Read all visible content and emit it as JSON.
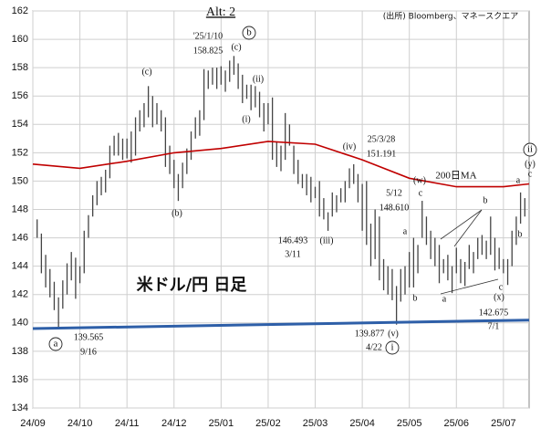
{
  "chart_data": {
    "type": "range-bar",
    "title": "Alt: 2",
    "source": "(出所) Bloomberg、マネースクエア",
    "watermark": "米ドル/円 日足",
    "color": "#444444",
    "grid": true,
    "xlim": [
      0,
      116
    ],
    "xticks": [
      {
        "value": 0,
        "label": "24/09"
      },
      {
        "value": 11,
        "label": "24/10"
      },
      {
        "value": 22,
        "label": "24/11"
      },
      {
        "value": 33,
        "label": "24/12"
      },
      {
        "value": 44,
        "label": "25/01"
      },
      {
        "value": 55,
        "label": "25/02"
      },
      {
        "value": 66,
        "label": "25/03"
      },
      {
        "value": 77,
        "label": "25/04"
      },
      {
        "value": 88,
        "label": "25/05"
      },
      {
        "value": 99,
        "label": "25/06"
      },
      {
        "value": 110,
        "label": "25/07"
      }
    ],
    "ylim": [
      134,
      162
    ],
    "yticks": [
      134,
      136,
      138,
      140,
      142,
      144,
      146,
      148,
      150,
      152,
      154,
      156,
      158,
      160,
      162
    ],
    "x": [
      1,
      2,
      3,
      4,
      5,
      6,
      7,
      8,
      9,
      10,
      11,
      12,
      13,
      14,
      15,
      16,
      17,
      18,
      19,
      20,
      21,
      22,
      23,
      24,
      25,
      26,
      27,
      28,
      29,
      30,
      31,
      32,
      33,
      34,
      35,
      36,
      37,
      38,
      39,
      40,
      41,
      42,
      43,
      44,
      45,
      46,
      47,
      48,
      49,
      50,
      51,
      52,
      53,
      54,
      55,
      56,
      57,
      58,
      59,
      60,
      61,
      62,
      63,
      64,
      65,
      66,
      67,
      68,
      69,
      70,
      71,
      72,
      73,
      74,
      75,
      76,
      77,
      78,
      79,
      80,
      81,
      82,
      83,
      84,
      85,
      86,
      87,
      88,
      89,
      90,
      91,
      92,
      93,
      94,
      95,
      96,
      97,
      98,
      99,
      100,
      101,
      102,
      103,
      104,
      105,
      106,
      107,
      108,
      109,
      110,
      111,
      112,
      113,
      114,
      115
    ],
    "low": [
      146.0,
      143.5,
      142.5,
      141.8,
      140.9,
      139.565,
      141.0,
      142.0,
      143.0,
      141.7,
      142.8,
      143.5,
      146.0,
      147.5,
      148.3,
      149.0,
      149.2,
      150.2,
      151.8,
      151.8,
      151.5,
      151.6,
      151.3,
      151.8,
      153.5,
      153.8,
      154.5,
      153.8,
      154.0,
      153.5,
      151.0,
      150.5,
      149.5,
      148.6,
      149.5,
      150.5,
      151.5,
      153.0,
      153.2,
      154.3,
      156.5,
      156.8,
      156.5,
      156.8,
      156.3,
      157.0,
      157.5,
      156.5,
      155.5,
      155.8,
      155.0,
      155.2,
      154.5,
      153.5,
      154.0,
      151.5,
      151.0,
      150.7,
      151.5,
      152.5,
      150.5,
      149.8,
      149.5,
      149.0,
      148.5,
      148.8,
      147.5,
      147.3,
      146.493,
      147.5,
      147.8,
      148.5,
      148.5,
      149.5,
      149.8,
      148.5,
      146.5,
      145.5,
      144.0,
      144.5,
      143.0,
      142.3,
      142.0,
      141.6,
      139.877,
      141.5,
      142.0,
      142.5,
      142.5,
      143.5,
      146.0,
      145.5,
      144.5,
      144.0,
      142.8,
      143.5,
      143.0,
      142.1,
      143.5,
      142.8,
      142.6,
      143.8,
      143.5,
      144.5,
      144.8,
      144.5,
      144.8,
      143.7,
      143.8,
      143.5,
      142.675,
      144.0,
      145.5,
      147.0,
      147.5
    ],
    "high": [
      147.3,
      146.3,
      144.8,
      143.8,
      142.9,
      141.8,
      143.0,
      144.2,
      145.0,
      144.6,
      144.0,
      146.5,
      147.6,
      149.0,
      150.0,
      150.3,
      150.8,
      152.5,
      153.2,
      153.4,
      153.0,
      153.0,
      153.5,
      154.5,
      155.0,
      155.5,
      156.7,
      156.0,
      155.5,
      155.0,
      154.5,
      152.5,
      151.5,
      150.5,
      151.3,
      152.3,
      153.5,
      154.5,
      155.0,
      157.9,
      157.8,
      158.0,
      158.0,
      158.1,
      157.8,
      158.5,
      158.825,
      158.3,
      157.5,
      156.8,
      156.8,
      156.7,
      156.3,
      155.5,
      155.5,
      155.9,
      152.8,
      152.5,
      154.8,
      154.0,
      152.5,
      151.5,
      150.5,
      150.5,
      150.3,
      149.6,
      150.0,
      148.8,
      147.8,
      149.2,
      149.0,
      149.5,
      150.0,
      150.9,
      151.191,
      150.5,
      149.8,
      150.0,
      147.0,
      148.0,
      147.5,
      144.5,
      144.0,
      143.8,
      142.6,
      143.8,
      144.0,
      145.0,
      146.0,
      145.5,
      148.61,
      147.5,
      146.5,
      146.0,
      145.5,
      144.5,
      144.8,
      144.0,
      145.3,
      144.5,
      144.3,
      145.5,
      145.0,
      146.0,
      146.2,
      145.8,
      147.5,
      146.0,
      145.3,
      144.5,
      144.5,
      146.5,
      147.5,
      149.2,
      148.8
    ],
    "ma": {
      "name": "200日MA",
      "color": "#c00000",
      "x": [
        0,
        11,
        22,
        33,
        44,
        55,
        66,
        77,
        88,
        99,
        110,
        116
      ],
      "values": [
        151.2,
        150.9,
        151.4,
        152.0,
        152.3,
        152.8,
        152.6,
        151.5,
        150.2,
        149.6,
        149.6,
        149.8
      ]
    },
    "trendline": {
      "color": "#2e5fa8",
      "x": [
        0,
        116
      ],
      "values": [
        139.6,
        140.2
      ]
    },
    "annotations": [
      {
        "text": "(c)"
      },
      {
        "text": "(b)"
      },
      {
        "text": "'25/1/10"
      },
      {
        "text": "158.825"
      },
      {
        "text": "b",
        "circled": true
      },
      {
        "text": "(c)"
      },
      {
        "text": "(ii)"
      },
      {
        "text": "(i)"
      },
      {
        "text": "(iv)"
      },
      {
        "text": "25/3/28"
      },
      {
        "text": "151.191"
      },
      {
        "text": "146.493"
      },
      {
        "text": "3/11"
      },
      {
        "text": "(iii)"
      },
      {
        "text": "(w)"
      },
      {
        "text": "c"
      },
      {
        "text": "5/12"
      },
      {
        "text": "148.610"
      },
      {
        "text": "a"
      },
      {
        "text": "b"
      },
      {
        "text": "(v)"
      },
      {
        "text": "139.877"
      },
      {
        "text": "4/22"
      },
      {
        "text": "i",
        "circled": true
      },
      {
        "text": "a",
        "circled": true
      },
      {
        "text": "139.565"
      },
      {
        "text": "9/16"
      },
      {
        "text": "a"
      },
      {
        "text": "b"
      },
      {
        "text": "c"
      },
      {
        "text": "(x)"
      },
      {
        "text": "142.675"
      },
      {
        "text": "7/1"
      },
      {
        "text": "a"
      },
      {
        "text": "b"
      },
      {
        "text": "ii",
        "circled": true
      },
      {
        "text": "(y)"
      },
      {
        "text": "c"
      }
    ]
  }
}
